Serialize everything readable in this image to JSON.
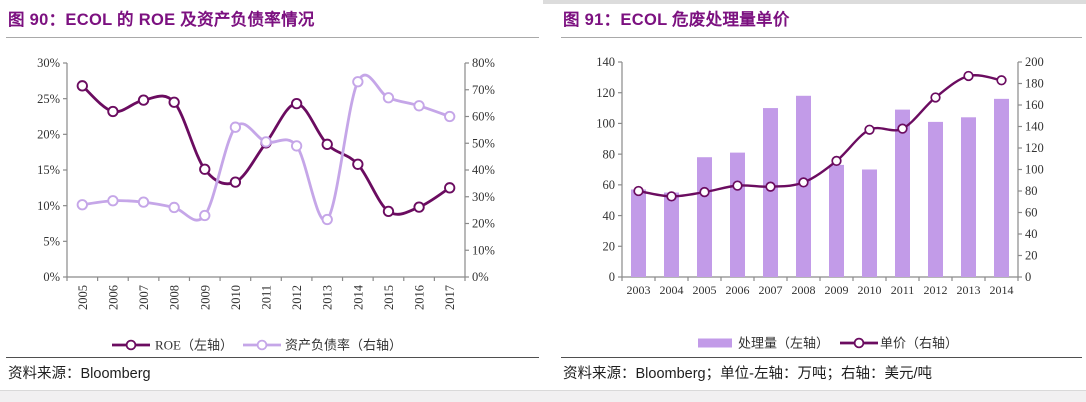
{
  "page": {
    "colors": {
      "accent_purple": "#7C1180",
      "dark_series": "#6B0C60",
      "light_line_series": "#C5A6E8",
      "bar_series": "#C29BE8",
      "axis_gray": "#8a8a8a",
      "tick_label": "#333333"
    },
    "panels": [
      {
        "title": "图 90：ECOL 的 ROE 及资产负债率情况",
        "source": "资料来源：Bloomberg"
      },
      {
        "title": "图 91：ECOL 危废处理量单价",
        "source": "资料来源：Bloomberg；单位-左轴：万吨；右轴：美元/吨"
      }
    ]
  },
  "chart_data": [
    {
      "type": "line",
      "title": "图 90：ECOL 的 ROE 及资产负债率情况",
      "categories": [
        "2005",
        "2006",
        "2007",
        "2008",
        "2009",
        "2010",
        "2011",
        "2012",
        "2013",
        "2014",
        "2015",
        "2016",
        "2017"
      ],
      "series": [
        {
          "name": "ROE（左轴）",
          "type": "line",
          "axis": "left",
          "color": "#6B0C60",
          "values": [
            26.8,
            23.2,
            24.8,
            24.5,
            15.1,
            13.3,
            18.8,
            24.3,
            18.6,
            15.8,
            9.2,
            9.8,
            12.5
          ]
        },
        {
          "name": "资产负债率（右轴）",
          "type": "line",
          "axis": "right",
          "color": "#C5A6E8",
          "values": [
            27,
            28.5,
            28,
            26,
            23,
            56,
            50.5,
            49,
            21.5,
            73,
            67,
            64,
            60
          ]
        }
      ],
      "left_axis": {
        "min": 0,
        "max": 30,
        "step": 5,
        "tick_labels": [
          "0%",
          "5%",
          "10%",
          "15%",
          "20%",
          "25%",
          "30%"
        ]
      },
      "right_axis": {
        "min": 0,
        "max": 80,
        "step": 10,
        "tick_labels": [
          "0%",
          "10%",
          "20%",
          "30%",
          "40%",
          "50%",
          "60%",
          "70%",
          "80%"
        ]
      },
      "grid": false,
      "legend_position": "bottom",
      "x_labels_rotated": true
    },
    {
      "type": "bar",
      "title": "图 91：ECOL 危废处理量单价",
      "categories": [
        "2003",
        "2004",
        "2005",
        "2006",
        "2007",
        "2008",
        "2009",
        "2010",
        "2011",
        "2012",
        "2013",
        "2014"
      ],
      "series": [
        {
          "name": "处理量（左轴）",
          "type": "bar",
          "axis": "left",
          "color": "#C29BE8",
          "values": [
            57,
            55,
            78,
            81,
            110,
            118,
            73,
            70,
            109,
            101,
            104,
            116
          ]
        },
        {
          "name": "单价（右轴）",
          "type": "line",
          "axis": "right",
          "color": "#6B0C60",
          "values": [
            80,
            75,
            79,
            85,
            84,
            88,
            108,
            137,
            138,
            167,
            187,
            183
          ]
        }
      ],
      "left_axis": {
        "min": 0,
        "max": 140,
        "step": 20,
        "tick_labels": [
          "0",
          "20",
          "40",
          "60",
          "80",
          "100",
          "120",
          "140"
        ]
      },
      "right_axis": {
        "min": 0,
        "max": 200,
        "step": 20,
        "tick_labels": [
          "0",
          "20",
          "40",
          "60",
          "80",
          "100",
          "120",
          "140",
          "160",
          "180",
          "200"
        ]
      },
      "grid": false,
      "legend_position": "bottom",
      "x_labels_rotated": false
    }
  ]
}
